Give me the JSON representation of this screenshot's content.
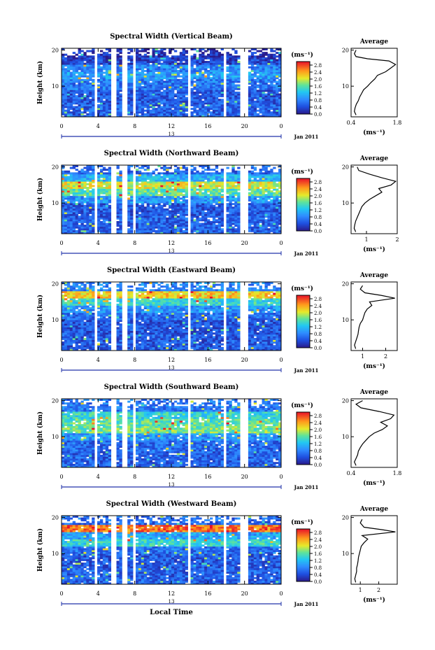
{
  "figure": {
    "x_axis_title": "Local Time",
    "date_label": "Jan 2011",
    "colorbar_unit": "(ms⁻¹)",
    "colorbar_ticks": [
      "0.0",
      "0.4",
      "0.8",
      "1.2",
      "1.6",
      "2.0",
      "2.4",
      "2.8"
    ],
    "profile_title": "Average",
    "profile_xlabel": "(ms⁻¹)"
  },
  "chart_data": [
    {
      "type": "heatmap",
      "title": "Spectral Width (Vertical Beam)",
      "ylabel": "Height (km)",
      "xlabel": "Local Time",
      "x_ticks": [
        "0",
        "4",
        "8",
        "12",
        "16",
        "20",
        "0"
      ],
      "day_marker": "13",
      "y_ticks": [
        "20",
        "10"
      ],
      "xlim": [
        0,
        24
      ],
      "ylim": [
        1.5,
        20.5
      ],
      "colorbar": {
        "unit": "ms⁻¹",
        "min": 0.0,
        "max": 3.0,
        "ticks": [
          0.0,
          0.4,
          0.8,
          1.2,
          1.6,
          2.0,
          2.4,
          2.8
        ]
      },
      "data_gaps_hours": [
        [
          3.5,
          4.0
        ],
        [
          5.5,
          6.0
        ],
        [
          6.7,
          7.3
        ],
        [
          7.7,
          8.0
        ],
        [
          13.8,
          14.2
        ],
        [
          17.8,
          18.0
        ],
        [
          19.6,
          20.1
        ],
        [
          20.1,
          20.3
        ]
      ],
      "bands": [
        [
          1.5,
          5,
          0.55
        ],
        [
          5,
          9,
          0.5
        ],
        [
          9,
          12,
          0.7
        ],
        [
          12,
          14,
          0.95
        ],
        [
          14,
          16,
          0.8
        ],
        [
          16,
          18,
          0.35
        ],
        [
          18,
          20.5,
          0.2
        ]
      ],
      "profile": {
        "xlim": [
          0.4,
          1.8
        ],
        "xticks": [
          "0.4",
          "1.8"
        ],
        "yticks": [
          "20",
          "10"
        ],
        "points": [
          [
            0.55,
            2
          ],
          [
            0.5,
            3
          ],
          [
            0.52,
            4
          ],
          [
            0.56,
            5
          ],
          [
            0.62,
            6
          ],
          [
            0.66,
            7
          ],
          [
            0.72,
            8
          ],
          [
            0.78,
            9
          ],
          [
            0.9,
            10
          ],
          [
            1.0,
            11
          ],
          [
            1.12,
            12
          ],
          [
            1.2,
            13
          ],
          [
            1.45,
            14
          ],
          [
            1.6,
            15
          ],
          [
            1.75,
            16
          ],
          [
            1.55,
            17
          ],
          [
            0.9,
            17.6
          ],
          [
            0.55,
            18.2
          ],
          [
            0.5,
            19
          ],
          [
            0.55,
            20
          ]
        ]
      }
    },
    {
      "type": "heatmap",
      "title": "Spectral Width (Northward Beam)",
      "ylabel": "Height (km)",
      "xlabel": "Local Time",
      "x_ticks": [
        "0",
        "4",
        "8",
        "12",
        "16",
        "20",
        "0"
      ],
      "day_marker": "13",
      "y_ticks": [
        "20",
        "10"
      ],
      "xlim": [
        0,
        24
      ],
      "ylim": [
        1.5,
        20.5
      ],
      "colorbar": {
        "unit": "ms⁻¹",
        "min": 0.0,
        "max": 3.0,
        "ticks": [
          0.0,
          0.4,
          0.8,
          1.2,
          1.6,
          2.0,
          2.4,
          2.8
        ]
      },
      "data_gaps_hours": [
        [
          3.5,
          4.0
        ],
        [
          5.5,
          6.0
        ],
        [
          6.7,
          7.3
        ],
        [
          7.7,
          8.0
        ],
        [
          13.8,
          14.2
        ],
        [
          17.8,
          18.0
        ],
        [
          19.6,
          20.1
        ],
        [
          20.1,
          20.3
        ]
      ],
      "bands": [
        [
          1.5,
          6,
          0.55
        ],
        [
          6,
          10,
          0.5
        ],
        [
          10,
          12,
          0.9
        ],
        [
          12,
          14,
          1.6
        ],
        [
          14,
          16,
          2.0
        ],
        [
          16,
          18,
          1.1
        ],
        [
          18,
          20.5,
          0.6
        ]
      ],
      "profile": {
        "xlim": [
          0.5,
          2.0
        ],
        "xticks": [
          "1",
          "2"
        ],
        "yticks": [
          "20",
          "10"
        ],
        "points": [
          [
            0.65,
            2
          ],
          [
            0.6,
            3
          ],
          [
            0.62,
            4
          ],
          [
            0.65,
            5
          ],
          [
            0.7,
            6
          ],
          [
            0.75,
            7
          ],
          [
            0.8,
            8
          ],
          [
            0.85,
            9
          ],
          [
            0.95,
            10
          ],
          [
            1.1,
            11
          ],
          [
            1.3,
            12
          ],
          [
            1.5,
            13
          ],
          [
            1.4,
            14
          ],
          [
            1.8,
            15
          ],
          [
            1.95,
            16
          ],
          [
            1.5,
            17
          ],
          [
            1.1,
            18
          ],
          [
            0.75,
            19
          ],
          [
            0.7,
            20
          ]
        ]
      }
    },
    {
      "type": "heatmap",
      "title": "Spectral Width (Eastward Beam)",
      "ylabel": "Height (km)",
      "xlabel": "Local Time",
      "x_ticks": [
        "0",
        "4",
        "8",
        "12",
        "16",
        "20",
        "0"
      ],
      "day_marker": "13",
      "y_ticks": [
        "20",
        "10"
      ],
      "xlim": [
        0,
        24
      ],
      "ylim": [
        1.5,
        20.5
      ],
      "colorbar": {
        "unit": "ms⁻¹",
        "min": 0.0,
        "max": 3.0,
        "ticks": [
          0.0,
          0.4,
          0.8,
          1.2,
          1.6,
          2.0,
          2.4,
          2.8
        ]
      },
      "data_gaps_hours": [
        [
          3.5,
          4.0
        ],
        [
          5.5,
          6.0
        ],
        [
          6.7,
          7.3
        ],
        [
          7.7,
          8.0
        ],
        [
          13.8,
          14.2
        ],
        [
          17.8,
          18.0
        ],
        [
          19.6,
          20.1
        ],
        [
          20.1,
          20.3
        ]
      ],
      "bands": [
        [
          1.5,
          6,
          0.5
        ],
        [
          6,
          10,
          0.45
        ],
        [
          10,
          12,
          0.65
        ],
        [
          12,
          14,
          0.9
        ],
        [
          14,
          16,
          1.4
        ],
        [
          16,
          18,
          2.2
        ],
        [
          18,
          20.5,
          0.8
        ]
      ],
      "profile": {
        "xlim": [
          0.5,
          2.5
        ],
        "xticks": [
          "1",
          "2"
        ],
        "yticks": [
          "20",
          "10"
        ],
        "points": [
          [
            0.7,
            2
          ],
          [
            0.65,
            3
          ],
          [
            0.7,
            4
          ],
          [
            0.75,
            5
          ],
          [
            0.8,
            6
          ],
          [
            0.82,
            7
          ],
          [
            0.85,
            8
          ],
          [
            0.9,
            9
          ],
          [
            1.0,
            10
          ],
          [
            1.05,
            11
          ],
          [
            1.1,
            12
          ],
          [
            1.2,
            13
          ],
          [
            1.4,
            14
          ],
          [
            1.3,
            15
          ],
          [
            2.4,
            16
          ],
          [
            1.8,
            16.8
          ],
          [
            1.1,
            17.5
          ],
          [
            0.9,
            18.5
          ],
          [
            1.0,
            19.5
          ]
        ]
      }
    },
    {
      "type": "heatmap",
      "title": "Spectral Width (Southward Beam)",
      "ylabel": "Height (km)",
      "xlabel": "Local Time",
      "x_ticks": [
        "0",
        "4",
        "8",
        "12",
        "16",
        "20",
        "0"
      ],
      "day_marker": "13",
      "y_ticks": [
        "20",
        "10"
      ],
      "xlim": [
        0,
        24
      ],
      "ylim": [
        1.5,
        20.5
      ],
      "colorbar": {
        "unit": "ms⁻¹",
        "min": 0.0,
        "max": 3.0,
        "ticks": [
          0.0,
          0.4,
          0.8,
          1.2,
          1.6,
          2.0,
          2.4,
          2.8
        ]
      },
      "data_gaps_hours": [
        [
          3.5,
          4.0
        ],
        [
          5.5,
          6.0
        ],
        [
          6.7,
          7.3
        ],
        [
          7.7,
          8.0
        ],
        [
          13.8,
          14.2
        ],
        [
          17.8,
          18.0
        ],
        [
          19.6,
          20.1
        ],
        [
          20.1,
          20.3
        ]
      ],
      "bands": [
        [
          1.5,
          6,
          0.55
        ],
        [
          6,
          9,
          0.6
        ],
        [
          9,
          11,
          0.9
        ],
        [
          11,
          13,
          1.7
        ],
        [
          13,
          15,
          1.6
        ],
        [
          15,
          17,
          1.4
        ],
        [
          17,
          20.5,
          0.7
        ]
      ],
      "profile": {
        "xlim": [
          0.4,
          1.8
        ],
        "xticks": [
          "0.4",
          "1.8"
        ],
        "yticks": [
          "20",
          "10"
        ],
        "points": [
          [
            0.55,
            2
          ],
          [
            0.5,
            3
          ],
          [
            0.55,
            4
          ],
          [
            0.6,
            5
          ],
          [
            0.62,
            6
          ],
          [
            0.68,
            7
          ],
          [
            0.75,
            8
          ],
          [
            0.85,
            9
          ],
          [
            0.95,
            10
          ],
          [
            1.1,
            11
          ],
          [
            1.35,
            12
          ],
          [
            1.5,
            13
          ],
          [
            1.3,
            14
          ],
          [
            1.6,
            15
          ],
          [
            1.7,
            16
          ],
          [
            1.25,
            17
          ],
          [
            0.7,
            18
          ],
          [
            0.55,
            19
          ],
          [
            0.75,
            20
          ]
        ]
      }
    },
    {
      "type": "heatmap",
      "title": "Spectral Width (Westward Beam)",
      "ylabel": "Height (km)",
      "xlabel": "Local Time",
      "x_ticks": [
        "0",
        "4",
        "8",
        "12",
        "16",
        "20",
        "0"
      ],
      "day_marker": "13",
      "y_ticks": [
        "20",
        "10"
      ],
      "xlim": [
        0,
        24
      ],
      "ylim": [
        1.5,
        20.5
      ],
      "colorbar": {
        "unit": "ms⁻¹",
        "min": 0.0,
        "max": 3.0,
        "ticks": [
          0.0,
          0.4,
          0.8,
          1.2,
          1.6,
          2.0,
          2.4,
          2.8
        ]
      },
      "data_gaps_hours": [
        [
          3.5,
          4.0
        ],
        [
          5.5,
          6.0
        ],
        [
          6.7,
          7.3
        ],
        [
          7.7,
          8.0
        ],
        [
          13.8,
          14.2
        ],
        [
          17.8,
          18.0
        ],
        [
          19.6,
          20.1
        ],
        [
          20.1,
          20.3
        ]
      ],
      "bands": [
        [
          1.5,
          6,
          0.55
        ],
        [
          6,
          10,
          0.5
        ],
        [
          10,
          12,
          0.65
        ],
        [
          12,
          14,
          1.4
        ],
        [
          14,
          16,
          1.0
        ],
        [
          16,
          18,
          2.6
        ],
        [
          18,
          20.5,
          0.6
        ]
      ],
      "profile": {
        "xlim": [
          0.5,
          3.0
        ],
        "xticks": [
          "1",
          "2"
        ],
        "yticks": [
          "20",
          "10"
        ],
        "points": [
          [
            0.75,
            2
          ],
          [
            0.7,
            3
          ],
          [
            0.75,
            4
          ],
          [
            0.8,
            5
          ],
          [
            0.8,
            6
          ],
          [
            0.85,
            7
          ],
          [
            0.88,
            8
          ],
          [
            0.9,
            9
          ],
          [
            0.95,
            10
          ],
          [
            1.0,
            11
          ],
          [
            1.05,
            12
          ],
          [
            1.2,
            13
          ],
          [
            1.4,
            14
          ],
          [
            1.1,
            15
          ],
          [
            2.9,
            16
          ],
          [
            2.2,
            16.6
          ],
          [
            1.2,
            17.3
          ],
          [
            1.0,
            18.5
          ],
          [
            1.1,
            19.5
          ]
        ]
      }
    }
  ]
}
